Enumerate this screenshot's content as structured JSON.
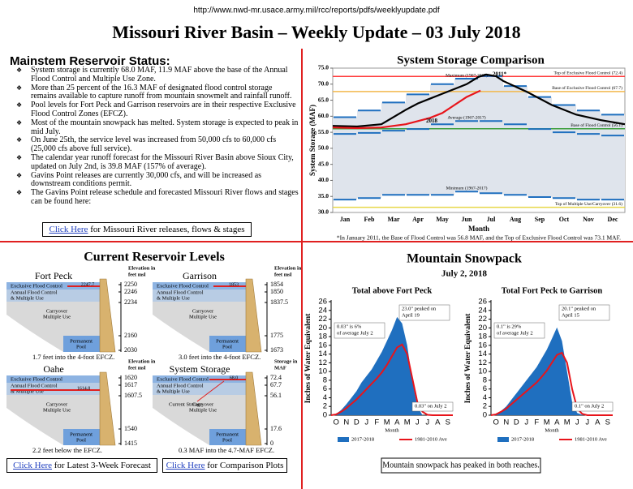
{
  "header": {
    "url": "http://www.nwd-mr.usace.army.mil/rcc/reports/pdfs/weeklyupdate.pdf",
    "title": "Missouri River Basin – Weekly Update – 03 July 2018"
  },
  "status": {
    "heading": "Mainstem Reservoir Status:",
    "bullets": [
      "System storage is currently 68.0 MAF, 11.9 MAF above the base of the Annual Flood Control and Multiple Use Zone.",
      "More than 25 percent of the 16.3 MAF of designated flood control storage remains available to capture runoff from mountain snowmelt and rainfall runoff.",
      "Pool levels for Fort Peck and Garrison reservoirs are in their respective Exclusive Flood Control Zones (EFCZ).",
      "Most of the mountain snowpack has melted.  System storage is expected to peak in mid July.",
      "On June 25th, the service level was increased from 50,000 cfs to 60,000 cfs (25,000 cfs above full service).",
      "The calendar year runoff forecast for the Missouri River Basin above Sioux City, updated on July 2nd, is 39.8 MAF (157% of average).",
      "Gavins Point releases are currently 30,000 cfs, and will be increased as downstream conditions permit.",
      "The Gavins Point release schedule and forecasted Missouri River flows and stages can be found here:"
    ],
    "link": {
      "text": "Click Here",
      "rest": " for Missouri River releases, flows & stages"
    }
  },
  "storage_chart": {
    "title": "System Storage Comparison",
    "ylabel": "System Storage (MAF)",
    "xlabel": "Month",
    "categories": [
      "Jan",
      "Feb",
      "Mar",
      "Apr",
      "May",
      "Jun",
      "Jul",
      "Aug",
      "Sep",
      "Oct",
      "Nov",
      "Dec"
    ],
    "xlim": [
      0,
      12
    ],
    "ylim": [
      30,
      75
    ],
    "yticks": [
      {
        "value": 30,
        "label": "30.0"
      },
      {
        "value": 35,
        "label": "35.0"
      },
      {
        "value": 40,
        "label": "40.0"
      },
      {
        "value": 45,
        "label": "45.0"
      },
      {
        "value": 50,
        "label": "50.0"
      },
      {
        "value": 55,
        "label": "55.0"
      },
      {
        "value": 60,
        "label": "60.0"
      },
      {
        "value": 65,
        "label": "65.0"
      },
      {
        "value": 70,
        "label": "70.0"
      },
      {
        "value": 75,
        "label": "75.0"
      }
    ],
    "band_color": "#1f6fbf",
    "range_fill": "#dfe4ec",
    "bands": [
      {
        "name": "Maximum (1967-2017)",
        "values": [
          59.7,
          61.8,
          64.3,
          66.8,
          70,
          71.7,
          72.5,
          69.4,
          66,
          63.5,
          61.8,
          60.5
        ]
      },
      {
        "name": "Average (1967-2017)",
        "values": [
          54.5,
          54.8,
          55.5,
          56,
          57.5,
          58.5,
          58.5,
          57.5,
          56,
          55,
          54.5,
          54
        ]
      },
      {
        "name": "Minimum (1967-2017)",
        "values": [
          34,
          34.5,
          35.5,
          35.5,
          35.5,
          36.5,
          36,
          35.5,
          34.8,
          34.5,
          34,
          34
        ]
      }
    ],
    "levels": [
      {
        "label": "Top of Exclusive Flood Control (72.4)",
        "value": 72.4,
        "color": "#ff3b3b"
      },
      {
        "label": "Base of Exclusive Flood Control (67.7)",
        "value": 67.7,
        "color": "#f2b84b"
      },
      {
        "label": "Base of Flood Control (56.1)",
        "value": 56.1,
        "color": "#3c9e3c"
      },
      {
        "label": "Top of Multiple Use/Carryover (31.6)",
        "value": 31.6,
        "color": "#e8d84a"
      }
    ],
    "series": [
      {
        "name": "2011*",
        "color": "#000000",
        "x": [
          0,
          1,
          2,
          3,
          3.5,
          4,
          4.5,
          5,
          5.5,
          6,
          6.3,
          6.7,
          7,
          8,
          9,
          10,
          11,
          12
        ],
        "values": [
          57,
          56.8,
          57.5,
          62,
          64,
          65.5,
          67,
          68.5,
          70,
          72.3,
          73,
          72.5,
          71,
          67.5,
          63.5,
          60.5,
          58.8,
          57.5
        ]
      },
      {
        "name": "2018",
        "color": "#e8141b",
        "x": [
          0,
          1,
          2,
          3,
          3.5,
          4,
          4.5,
          5,
          5.5,
          6.07
        ],
        "values": [
          56.5,
          56.3,
          56.5,
          57.5,
          58.5,
          59.5,
          61,
          63.5,
          66,
          68
        ]
      }
    ],
    "footnote": "*In January 2011, the Base of Flood Control was 56.8 MAF, and the Top of Exclusive Flood Control was 73.1 MAF."
  },
  "reservoirs": {
    "heading": "Current Reservoir Levels",
    "zones": [
      [
        "Exclusive Flood Control"
      ],
      [
        "Annual Flood Control",
        "& Multiple Use"
      ],
      [
        "Carryover",
        "Multiple Use"
      ],
      [
        "Permanent",
        "Pool"
      ]
    ],
    "items": [
      {
        "name": "Fort Peck",
        "scale_header": [
          "Elevation in",
          "feet msl"
        ],
        "scale": [
          2250,
          2246,
          2234,
          2160,
          2030
        ],
        "current": 2247.7,
        "caption": "1.7 feet into the 4-foot EFCZ."
      },
      {
        "name": "Garrison",
        "scale_header": [
          "Elevation in",
          "feet msl"
        ],
        "scale": [
          1854,
          1850,
          1837.5,
          1775,
          1673
        ],
        "current": 1853.0,
        "caption": "3.0 feet into the 4-foot EFCZ."
      },
      {
        "name": "Oahe",
        "scale_header": [
          "Elevation in",
          "feet msl"
        ],
        "scale": [
          1620,
          1617,
          1607.5,
          1540,
          1415
        ],
        "current": 1614.8,
        "caption": "2.2 feet below the EFCZ."
      },
      {
        "name": "System Storage",
        "scale_header": [
          "Storage in",
          "MAF"
        ],
        "scale": [
          72.4,
          67.7,
          56.1,
          17.6,
          0
        ],
        "current": "68.0",
        "note": "Current Storage",
        "caption": "0.3 MAF into the 4.7-MAF EFCZ."
      }
    ],
    "links": [
      {
        "text": "Click Here",
        "rest": " for Latest 3-Week Forecast"
      },
      {
        "text": "Click Here",
        "rest": " for Comparison Plots"
      }
    ]
  },
  "snowpack": {
    "heading": "Mountain Snowpack",
    "date": "July 2, 2018",
    "note": "Mountain snowpack has peaked in both reaches.",
    "charts": [
      {
        "title": "Total above Fort Peck",
        "ylabel": "Inches of Water Equivalent",
        "xlabel": "Month",
        "categories": [
          "O",
          "N",
          "D",
          "J",
          "F",
          "M",
          "A",
          "M",
          "J",
          "J",
          "A",
          "S"
        ],
        "xlim": [
          0,
          12
        ],
        "ylim": [
          0,
          26
        ],
        "yticks": [
          0,
          2,
          4,
          6,
          8,
          10,
          12,
          14,
          16,
          18,
          20,
          22,
          24,
          26
        ],
        "x": [
          0,
          0.5,
          1,
          1.5,
          2,
          2.5,
          3,
          3.5,
          4,
          4.5,
          5,
          5.5,
          6,
          6.5,
          7,
          7.5,
          8,
          8.5,
          9,
          9.5,
          10,
          10.5,
          11,
          11.5,
          12
        ],
        "series": [
          {
            "name": "2017-2018",
            "color": "#1f6fbf",
            "values": [
              0,
              0.3,
              1.2,
              2.5,
              4,
              5.5,
              7.5,
              9,
              10.5,
              12.5,
              14.5,
              17,
              19.5,
              22.5,
              21,
              16,
              8,
              2,
              0.03,
              0,
              0,
              0,
              0,
              0,
              0
            ]
          },
          {
            "name": "1981-2010 Ave",
            "color": "#e8141b",
            "values": [
              0,
              0.2,
              0.8,
              1.6,
              2.6,
              3.6,
              4.8,
              6,
              7.2,
              8.4,
              9.8,
              11.5,
              13.5,
              15.5,
              16.2,
              14,
              8.5,
              3,
              0.8,
              0.1,
              0,
              0,
              0,
              0,
              0
            ]
          }
        ],
        "annotations": [
          [
            "0.03\" is 6%",
            "of average July 2"
          ],
          [
            "23.0\" peaked on",
            "April 19"
          ],
          [
            "0.03\" on July 2"
          ]
        ]
      },
      {
        "title": "Total Fort Peck to Garrison",
        "ylabel": "Inches of Water Equivalent",
        "xlabel": "Month",
        "categories": [
          "O",
          "N",
          "D",
          "J",
          "F",
          "M",
          "A",
          "M",
          "J",
          "J",
          "A",
          "S"
        ],
        "xlim": [
          0,
          12
        ],
        "ylim": [
          0,
          26
        ],
        "yticks": [
          0,
          2,
          4,
          6,
          8,
          10,
          12,
          14,
          16,
          18,
          20,
          22,
          24,
          26
        ],
        "x": [
          0,
          0.5,
          1,
          1.5,
          2,
          2.5,
          3,
          3.5,
          4,
          4.5,
          5,
          5.5,
          6,
          6.5,
          7,
          7.5,
          8,
          8.5,
          9,
          9.5,
          10,
          10.5,
          11,
          11.5,
          12
        ],
        "series": [
          {
            "name": "2017-2018",
            "color": "#1f6fbf",
            "values": [
              0,
              0.2,
              1,
              2,
              3.5,
              5,
              6.5,
              8,
              9.5,
              11,
              13,
              15,
              17.5,
              20.1,
              17,
              10,
              3,
              0.5,
              0.1,
              0,
              0,
              0,
              0,
              0,
              0
            ]
          },
          {
            "name": "1981-2010 Ave",
            "color": "#e8141b",
            "values": [
              0,
              0.2,
              0.8,
              1.5,
              2.5,
              3.5,
              4.5,
              5.5,
              6.5,
              7.5,
              8.8,
              10.2,
              12,
              13.8,
              14.3,
              12,
              6,
              1.5,
              0.3,
              0,
              0,
              0,
              0,
              0,
              0
            ]
          }
        ],
        "annotations": [
          [
            "0.1\" is 29%",
            "of average July 2"
          ],
          [
            "20.1\" peaked on",
            "April 15"
          ],
          [
            "0.1\" on July 2"
          ]
        ]
      }
    ]
  }
}
